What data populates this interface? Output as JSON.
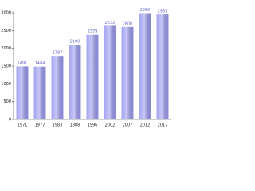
{
  "chart_data": {
    "type": "bar",
    "categories": [
      "1971",
      "1977",
      "1983",
      "1988",
      "1996",
      "2002",
      "2007",
      "2012",
      "2017"
    ],
    "values": [
      1491,
      1484,
      1787,
      2100,
      2379,
      2632,
      2600,
      2989,
      2951
    ],
    "color": "#9a9af0",
    "ylim": [
      0,
      3000
    ],
    "yticks": [
      0,
      500,
      1000,
      1500,
      2000,
      2500,
      3000
    ],
    "grid": false
  }
}
